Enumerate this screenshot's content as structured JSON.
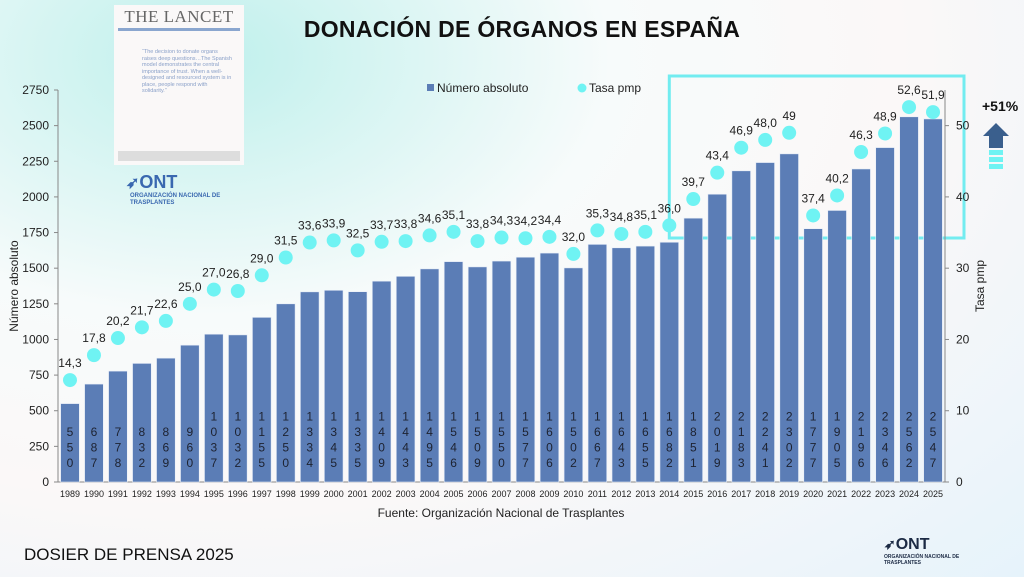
{
  "header": {
    "title": "DONACIÓN DE ÓRGANOS EN ESPAÑA"
  },
  "lancet": {
    "masthead": "THE LANCET",
    "quote": "“The decision to donate organs raises deep questions…The Spanish model demonstrates the central importance of trust. When a well-designed and resourced system is in place, people respond with solidarity.”"
  },
  "logo": {
    "name": "ONT",
    "subtitle": "ORGANIZACIÓN NACIONAL DE TRASPLANTES"
  },
  "footer": {
    "text": "DOSIER DE PRENSA 2025"
  },
  "annotation": {
    "growth": "+51%",
    "highlight_range": [
      "2015",
      "2025"
    ]
  },
  "colors": {
    "bars": "#5b7db6",
    "dots": "#6ff3f3",
    "highlight": "#72ecf0",
    "arrow": "#3a5f8d"
  },
  "chart_data": {
    "type": "bar+scatter",
    "title": "DONACIÓN DE ÓRGANOS EN ESPAÑA",
    "source": "Fuente: Organización Nacional de Trasplantes",
    "categories": [
      "1989",
      "1990",
      "1991",
      "1992",
      "1993",
      "1994",
      "1995",
      "1996",
      "1997",
      "1998",
      "1999",
      "2000",
      "2001",
      "2002",
      "2003",
      "2004",
      "2005",
      "2006",
      "2007",
      "2008",
      "2009",
      "2010",
      "2011",
      "2012",
      "2013",
      "2014",
      "2015",
      "2016",
      "2017",
      "2018",
      "2019",
      "2020",
      "2021",
      "2022",
      "2023",
      "2024",
      "2025"
    ],
    "series": [
      {
        "name": "Número absoluto",
        "type": "bar",
        "axis": "left",
        "values": [
          550,
          687,
          778,
          832,
          869,
          960,
          1037,
          1032,
          1155,
          1250,
          1334,
          1345,
          1335,
          1409,
          1443,
          1495,
          1546,
          1509,
          1550,
          1577,
          1606,
          1502,
          1667,
          1643,
          1655,
          1682,
          1851,
          2019,
          2183,
          2241,
          2302,
          1777,
          1905,
          2196,
          2346,
          2562,
          2547
        ]
      },
      {
        "name": "Tasa pmp",
        "type": "scatter",
        "axis": "right",
        "values": [
          14.3,
          17.8,
          20.2,
          21.7,
          22.6,
          25.0,
          27.0,
          26.8,
          29.0,
          31.5,
          33.6,
          33.9,
          32.5,
          33.7,
          33.8,
          34.6,
          35.1,
          33.8,
          34.3,
          34.2,
          34.4,
          32.0,
          35.3,
          34.8,
          35.1,
          36.0,
          39.7,
          43.4,
          46.9,
          48.0,
          49,
          37.4,
          40.2,
          46.3,
          48.9,
          52.6,
          51.9
        ],
        "labels": [
          "14,3",
          "17,8",
          "20,2",
          "21,7",
          "22,6",
          "25,0",
          "27,0",
          "26,8",
          "29,0",
          "31,5",
          "33,6",
          "33,9",
          "32,5",
          "33,7",
          "33,8",
          "34,6",
          "35,1",
          "33,8",
          "34,3",
          "34,2",
          "34,4",
          "32,0",
          "35,3",
          "34,8",
          "35,1",
          "36,0",
          "39,7",
          "43,4",
          "46,9",
          "48,0",
          "49",
          "37,4",
          "40,2",
          "46,3",
          "48,9",
          "52,6",
          "51,9"
        ]
      }
    ],
    "ylabel": "Número absoluto",
    "ylim": [
      0,
      2750
    ],
    "yticks": [
      0,
      250,
      500,
      750,
      1000,
      1250,
      1500,
      1750,
      2000,
      2250,
      2500,
      2750
    ],
    "y2label": "Tasa pmp",
    "y2lim": [
      0,
      55
    ],
    "y2ticks": [
      0,
      10,
      20,
      30,
      40,
      50
    ],
    "legend": "top-center",
    "grid": false
  }
}
